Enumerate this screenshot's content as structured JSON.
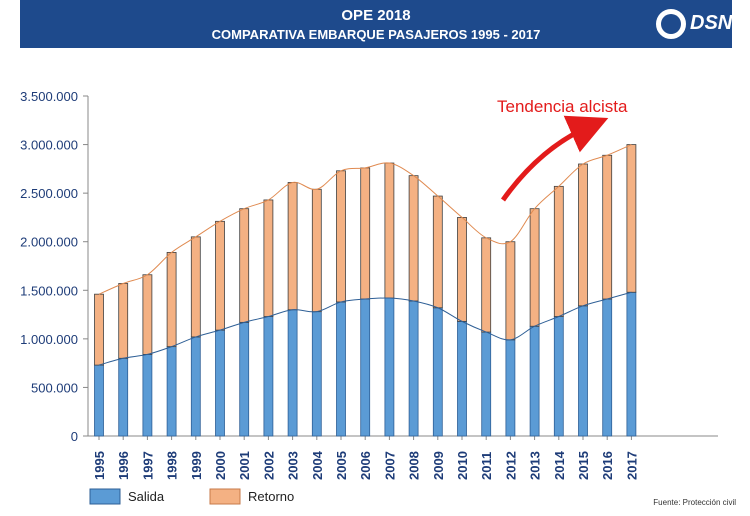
{
  "header": {
    "title": "OPE 2018",
    "subtitle": "COMPARATIVA EMBARQUE PASAJEROS 1995 - 2017",
    "logo_text": "DSN"
  },
  "annotation": {
    "text": "Tendencia alcista",
    "color": "#e31b1b"
  },
  "source": "Fuente: Protección civil",
  "chart_data": {
    "type": "bar",
    "stacked": true,
    "categories": [
      "1995",
      "1996",
      "1997",
      "1998",
      "1999",
      "2000",
      "2001",
      "2002",
      "2003",
      "2004",
      "2005",
      "2006",
      "2007",
      "2008",
      "2009",
      "2010",
      "2011",
      "2012",
      "2013",
      "2014",
      "2015",
      "2016",
      "2017"
    ],
    "series": [
      {
        "name": "Salida",
        "color": "#5b9bd5",
        "values": [
          730000,
          800000,
          840000,
          920000,
          1020000,
          1090000,
          1170000,
          1230000,
          1300000,
          1280000,
          1380000,
          1410000,
          1420000,
          1390000,
          1320000,
          1180000,
          1070000,
          990000,
          1130000,
          1230000,
          1340000,
          1410000,
          1480000
        ]
      },
      {
        "name": "Retorno",
        "color": "#f4b183",
        "values": [
          730000,
          770000,
          820000,
          970000,
          1030000,
          1120000,
          1170000,
          1200000,
          1310000,
          1260000,
          1350000,
          1350000,
          1390000,
          1290000,
          1150000,
          1070000,
          970000,
          1010000,
          1210000,
          1340000,
          1460000,
          1480000,
          1520000
        ]
      }
    ],
    "ylim": [
      0,
      3500000
    ],
    "yticks": [
      "0",
      "500.000",
      "1.000.000",
      "1.500.000",
      "2.000.000",
      "2.500.000",
      "3.000.000",
      "3.500.000"
    ],
    "ytick_values": [
      0,
      500000,
      1000000,
      1500000,
      2000000,
      2500000,
      3000000,
      3500000
    ],
    "trend_lines": true,
    "legend": "bottom-left",
    "grid": false
  }
}
